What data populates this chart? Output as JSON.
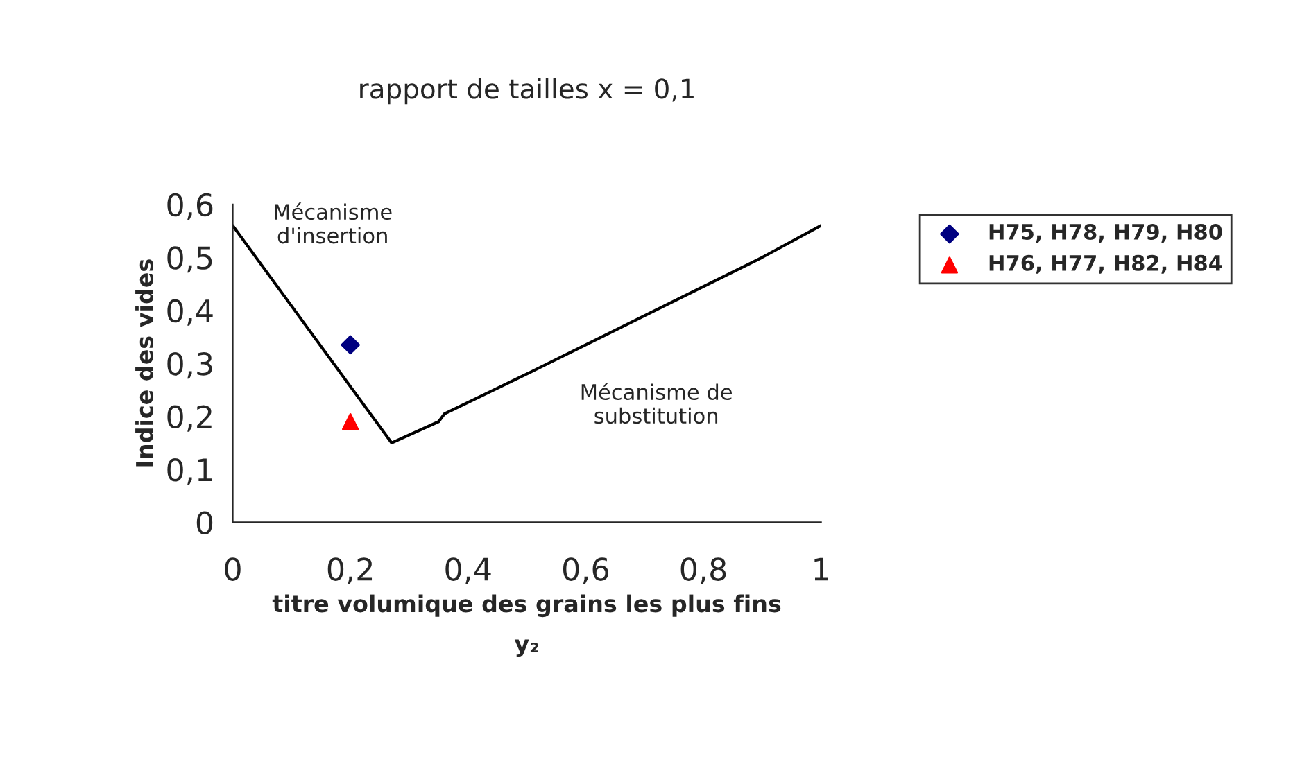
{
  "chart_data": {
    "type": "scatter",
    "title": "rapport de tailles x = 0,1",
    "xlabel": "titre volumique des grains les plus fins\ny₂",
    "ylabel": "Indice des vides",
    "xlim": [
      0,
      1
    ],
    "ylim": [
      0,
      0.6
    ],
    "xticks": [
      0,
      {
        "value": 0.2,
        "label": "0,2"
      },
      {
        "value": 0.4,
        "label": "0,4"
      },
      {
        "value": 0.6,
        "label": "0,6"
      },
      {
        "value": 0.8,
        "label": "0,8"
      },
      1
    ],
    "yticks": [
      0,
      {
        "value": 0.1,
        "label": "0,1"
      },
      {
        "value": 0.2,
        "label": "0,2"
      },
      {
        "value": 0.3,
        "label": "0,3"
      },
      {
        "value": 0.4,
        "label": "0,4"
      },
      {
        "value": 0.5,
        "label": "0,5"
      },
      {
        "value": 0.6,
        "label": "0,6"
      }
    ],
    "series": [
      {
        "type": "line",
        "color": "#000000",
        "marker": "none",
        "x": [
          0,
          0.27,
          0.35,
          0.36,
          0.5,
          0.7,
          0.9,
          1
        ],
        "values": [
          0.56,
          0.15,
          0.19,
          0.205,
          0.28,
          0.39,
          0.5,
          0.56
        ]
      },
      {
        "name": "H75, H78, H79, H80",
        "color": "#000080",
        "marker": "diamond",
        "x": [
          0.2
        ],
        "values": [
          0.335
        ]
      },
      {
        "name": "H76, H77, H82, H84",
        "color": "#ff0000",
        "marker": "triangle",
        "x": [
          0.2
        ],
        "values": [
          0.19
        ]
      }
    ],
    "annotations": [
      "Mécanisme\nd'insertion",
      "Mécanisme de\nsubstitution"
    ],
    "legend": "right",
    "grid": false
  }
}
